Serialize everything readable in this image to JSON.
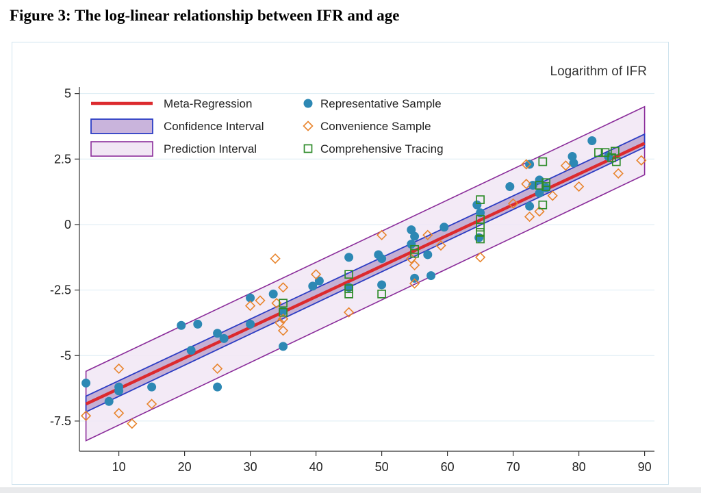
{
  "figure_title": "Figure 3: The log-linear relationship between IFR and age",
  "colors": {
    "regression": "#dc2a2e",
    "confidence_border": "#2b3cc4",
    "confidence_fill": "#9e7fb8",
    "prediction_border": "#8a2c9a",
    "prediction_fill": "#f1e6f4",
    "representative": "#2d88b4",
    "convenience": "#e8842c",
    "tracing": "#2e8c2a",
    "grid": "#dcebf3"
  },
  "chart_data": {
    "type": "scatter",
    "title": "Logarithm of IFR",
    "xlabel": "",
    "ylabel": "Logarithm of IFR",
    "xlim": [
      4,
      91.5
    ],
    "ylim": [
      -8.6,
      5.2
    ],
    "x_ticks": [
      10,
      20,
      30,
      40,
      50,
      60,
      70,
      80,
      90
    ],
    "y_ticks": [
      5,
      2.5,
      0,
      -2.5,
      -5,
      -7.5
    ],
    "y_tick_labels": [
      "5",
      "2.5",
      "0",
      "-2.5",
      "-5",
      "-7.5"
    ],
    "grid": "horizontal",
    "legend_position": "top-left inside",
    "legend": [
      {
        "key": "regression",
        "label": "Meta-Regression"
      },
      {
        "key": "confidence",
        "label": "Confidence Interval"
      },
      {
        "key": "prediction",
        "label": "Prediction Interval"
      },
      {
        "key": "representative",
        "label": "Representative Sample"
      },
      {
        "key": "convenience",
        "label": "Convenience Sample"
      },
      {
        "key": "tracing",
        "label": "Comprehensive Tracing"
      }
    ],
    "regression": {
      "x": [
        5,
        90
      ],
      "y": [
        -6.85,
        3.1
      ]
    },
    "confidence_interval": {
      "x": [
        5,
        90
      ],
      "lower": [
        -7.15,
        2.95
      ],
      "upper": [
        -6.55,
        3.45
      ]
    },
    "prediction_interval": {
      "x": [
        5,
        90
      ],
      "lower": [
        -8.25,
        1.9
      ],
      "upper": [
        -5.6,
        4.5
      ]
    },
    "series": [
      {
        "name": "Representative Sample",
        "marker": "circle",
        "points": [
          [
            5,
            -6.05
          ],
          [
            8.5,
            -6.75
          ],
          [
            10,
            -6.2
          ],
          [
            10,
            -6.35
          ],
          [
            15,
            -6.2
          ],
          [
            19.5,
            -3.85
          ],
          [
            21,
            -4.8
          ],
          [
            22,
            -3.8
          ],
          [
            25,
            -4.15
          ],
          [
            25,
            -6.2
          ],
          [
            26,
            -4.35
          ],
          [
            30,
            -3.8
          ],
          [
            30,
            -2.8
          ],
          [
            33.5,
            -2.65
          ],
          [
            35,
            -3.3
          ],
          [
            35,
            -4.65
          ],
          [
            39.5,
            -2.35
          ],
          [
            40.5,
            -2.15
          ],
          [
            45,
            -1.25
          ],
          [
            45,
            -2.4
          ],
          [
            49.5,
            -1.15
          ],
          [
            50,
            -1.3
          ],
          [
            50,
            -2.3
          ],
          [
            54.5,
            -0.2
          ],
          [
            54.5,
            -0.75
          ],
          [
            55,
            -0.45
          ],
          [
            55,
            -2.05
          ],
          [
            57,
            -1.15
          ],
          [
            57.5,
            -1.95
          ],
          [
            59.5,
            -0.1
          ],
          [
            64.5,
            0.75
          ],
          [
            65,
            0.45
          ],
          [
            64.8,
            -0.5
          ],
          [
            69.5,
            1.45
          ],
          [
            72.5,
            2.3
          ],
          [
            72.5,
            0.7
          ],
          [
            73,
            1.5
          ],
          [
            74,
            1.7
          ],
          [
            74,
            1.2
          ],
          [
            75,
            1.4
          ],
          [
            79,
            2.6
          ],
          [
            79.2,
            2.35
          ],
          [
            82,
            3.2
          ],
          [
            84.5,
            2.6
          ]
        ]
      },
      {
        "name": "Convenience Sample",
        "marker": "diamond",
        "points": [
          [
            5,
            -7.3
          ],
          [
            10,
            -5.5
          ],
          [
            10,
            -7.2
          ],
          [
            12,
            -7.6
          ],
          [
            15,
            -6.85
          ],
          [
            25,
            -5.5
          ],
          [
            30,
            -3.1
          ],
          [
            31.5,
            -2.9
          ],
          [
            33.8,
            -1.3
          ],
          [
            34,
            -3.0
          ],
          [
            34.5,
            -3.75
          ],
          [
            35,
            -2.4
          ],
          [
            35,
            -3.6
          ],
          [
            35,
            -4.05
          ],
          [
            40,
            -1.9
          ],
          [
            45,
            -3.35
          ],
          [
            50,
            -0.4
          ],
          [
            54.5,
            -1.3
          ],
          [
            55,
            -1.55
          ],
          [
            55,
            -2.25
          ],
          [
            57,
            -0.4
          ],
          [
            59,
            -0.8
          ],
          [
            65,
            -1.25
          ],
          [
            70,
            0.8
          ],
          [
            72,
            2.3
          ],
          [
            72,
            1.55
          ],
          [
            72.5,
            0.3
          ],
          [
            74,
            0.5
          ],
          [
            76,
            1.1
          ],
          [
            78,
            2.25
          ],
          [
            80,
            1.45
          ],
          [
            86,
            1.95
          ],
          [
            89.5,
            2.45
          ]
        ]
      },
      {
        "name": "Comprehensive Tracing",
        "marker": "square",
        "points": [
          [
            35,
            -3.0
          ],
          [
            35,
            -3.35
          ],
          [
            45,
            -1.9
          ],
          [
            45,
            -2.45
          ],
          [
            45,
            -2.65
          ],
          [
            50,
            -2.65
          ],
          [
            55,
            -0.95
          ],
          [
            55,
            -1.1
          ],
          [
            65,
            0.95
          ],
          [
            65,
            0.2
          ],
          [
            65,
            -0.1
          ],
          [
            65,
            -0.3
          ],
          [
            65,
            -0.55
          ],
          [
            74,
            1.5
          ],
          [
            74.5,
            2.4
          ],
          [
            74.5,
            0.75
          ],
          [
            75,
            1.45
          ],
          [
            75,
            1.6
          ],
          [
            83,
            2.75
          ],
          [
            84,
            2.75
          ],
          [
            85,
            2.55
          ],
          [
            85.5,
            2.8
          ],
          [
            85.7,
            2.4
          ]
        ]
      }
    ]
  }
}
